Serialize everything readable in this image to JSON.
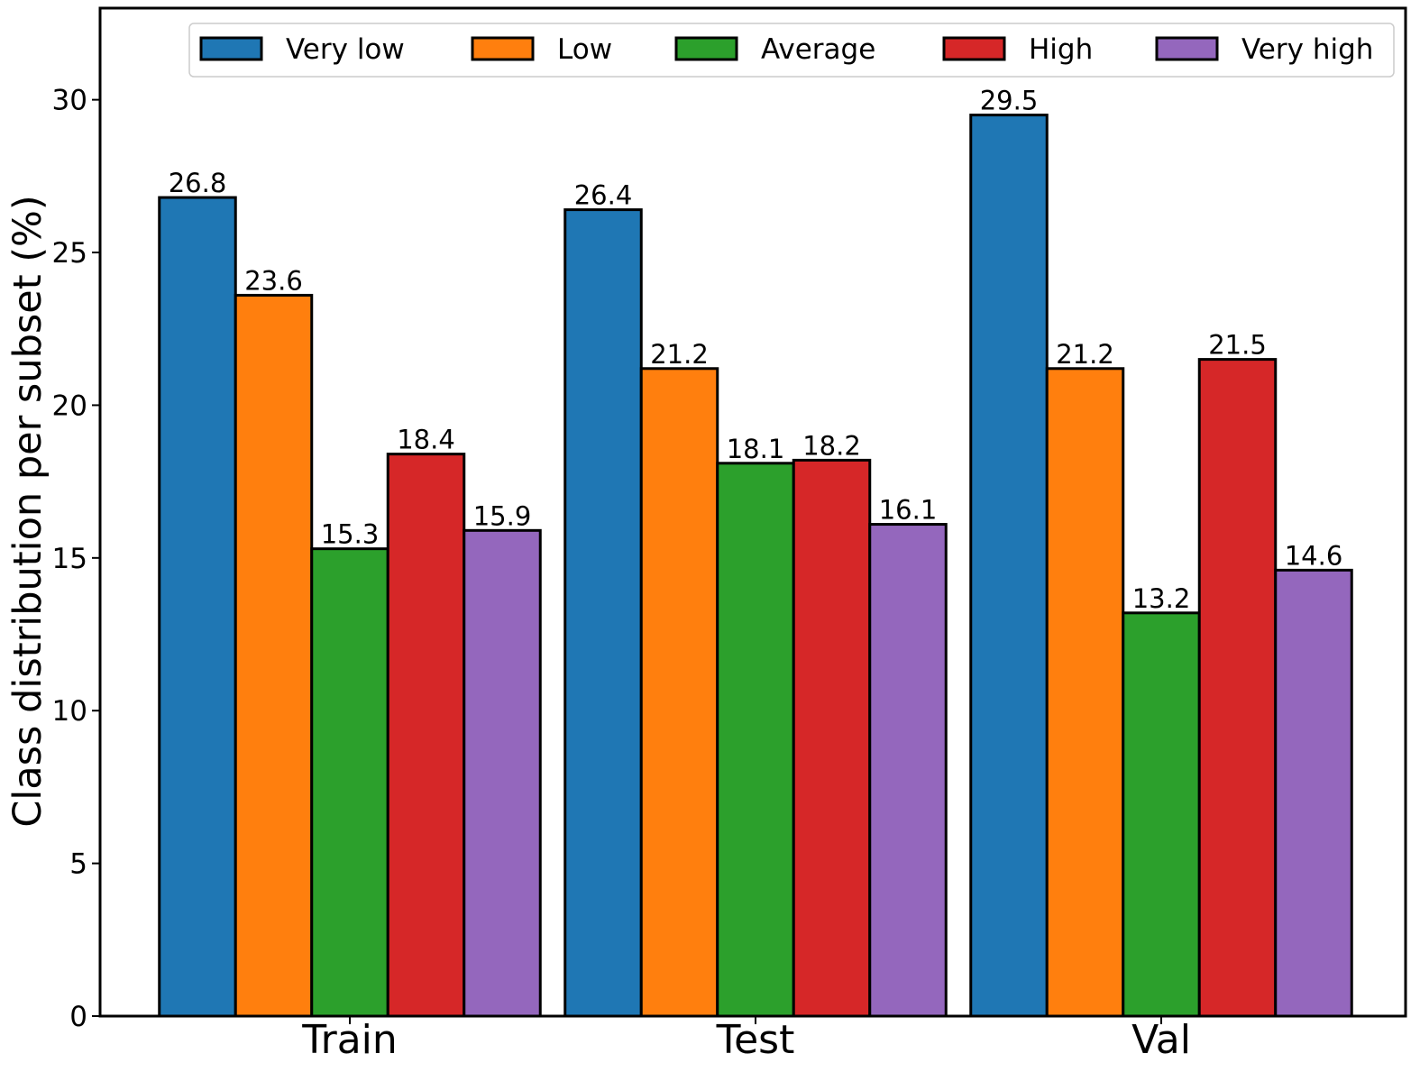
{
  "chart_data": {
    "type": "bar",
    "title": "",
    "xlabel": "",
    "ylabel": "Class distribution per subset (%)",
    "categories": [
      "Train",
      "Test",
      "Val"
    ],
    "ylim": [
      0,
      33
    ],
    "yticks": [
      0,
      5,
      10,
      15,
      20,
      25,
      30
    ],
    "grid": false,
    "legend_position": "top",
    "series": [
      {
        "name": "Very low",
        "color": "#1f77b4",
        "values": [
          26.8,
          26.4,
          29.5
        ]
      },
      {
        "name": "Low",
        "color": "#ff7f0e",
        "values": [
          23.6,
          21.2,
          21.2
        ]
      },
      {
        "name": "Average",
        "color": "#2ca02c",
        "values": [
          15.3,
          18.1,
          13.2
        ]
      },
      {
        "name": "High",
        "color": "#d62728",
        "values": [
          18.4,
          18.2,
          21.5
        ]
      },
      {
        "name": "Very high",
        "color": "#9467bd",
        "values": [
          15.9,
          16.1,
          14.6
        ]
      }
    ],
    "value_labels": [
      [
        "26.8",
        "26.4",
        "29.5"
      ],
      [
        "23.6",
        "21.2",
        "21.2"
      ],
      [
        "15.3",
        "18.1",
        "13.2"
      ],
      [
        "18.4",
        "18.2",
        "21.5"
      ],
      [
        "15.9",
        "16.1",
        "14.6"
      ]
    ]
  }
}
